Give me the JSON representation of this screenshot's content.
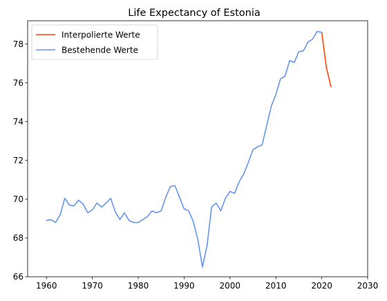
{
  "chart_data": {
    "type": "line",
    "title": "Life Expectancy of Estonia",
    "xlabel": "",
    "ylabel": "",
    "xlim": [
      1955.9,
      2030
    ],
    "ylim": [
      66,
      79.2
    ],
    "xticks": [
      1960,
      1970,
      1980,
      1990,
      2000,
      2010,
      2020,
      2030
    ],
    "yticks": [
      66,
      68,
      70,
      72,
      74,
      76,
      78
    ],
    "grid": false,
    "legend_position": "top-left",
    "series": [
      {
        "name": "Interpolierte Werte",
        "color": "#ff4500",
        "x": [
          2020,
          2021,
          2022
        ],
        "y": [
          78.6,
          76.8,
          75.8
        ]
      },
      {
        "name": "Bestehende Werte",
        "color": "#6495ed",
        "x": [
          1960,
          1961,
          1962,
          1963,
          1964,
          1965,
          1966,
          1967,
          1968,
          1969,
          1970,
          1971,
          1972,
          1973,
          1974,
          1975,
          1976,
          1977,
          1978,
          1979,
          1980,
          1981,
          1982,
          1983,
          1984,
          1985,
          1986,
          1987,
          1988,
          1989,
          1990,
          1991,
          1992,
          1993,
          1994,
          1995,
          1996,
          1997,
          1998,
          1999,
          2000,
          2001,
          2002,
          2003,
          2004,
          2005,
          2006,
          2007,
          2008,
          2009,
          2010,
          2011,
          2012,
          2013,
          2014,
          2015,
          2016,
          2017,
          2018,
          2019,
          2020
        ],
        "y": [
          68.9,
          68.95,
          68.8,
          69.2,
          70.05,
          69.7,
          69.65,
          69.95,
          69.75,
          69.3,
          69.45,
          69.8,
          69.6,
          69.8,
          70.05,
          69.35,
          68.95,
          69.3,
          68.9,
          68.8,
          68.8,
          68.95,
          69.1,
          69.4,
          69.3,
          69.4,
          70.1,
          70.65,
          70.7,
          70.1,
          69.5,
          69.4,
          68.85,
          67.9,
          66.5,
          67.6,
          69.6,
          69.8,
          69.4,
          70.05,
          70.4,
          70.3,
          70.9,
          71.3,
          71.9,
          72.55,
          72.7,
          72.8,
          73.8,
          74.8,
          75.4,
          76.2,
          76.35,
          77.15,
          77.05,
          77.6,
          77.65,
          78.1,
          78.25,
          78.65,
          78.6
        ]
      }
    ]
  }
}
